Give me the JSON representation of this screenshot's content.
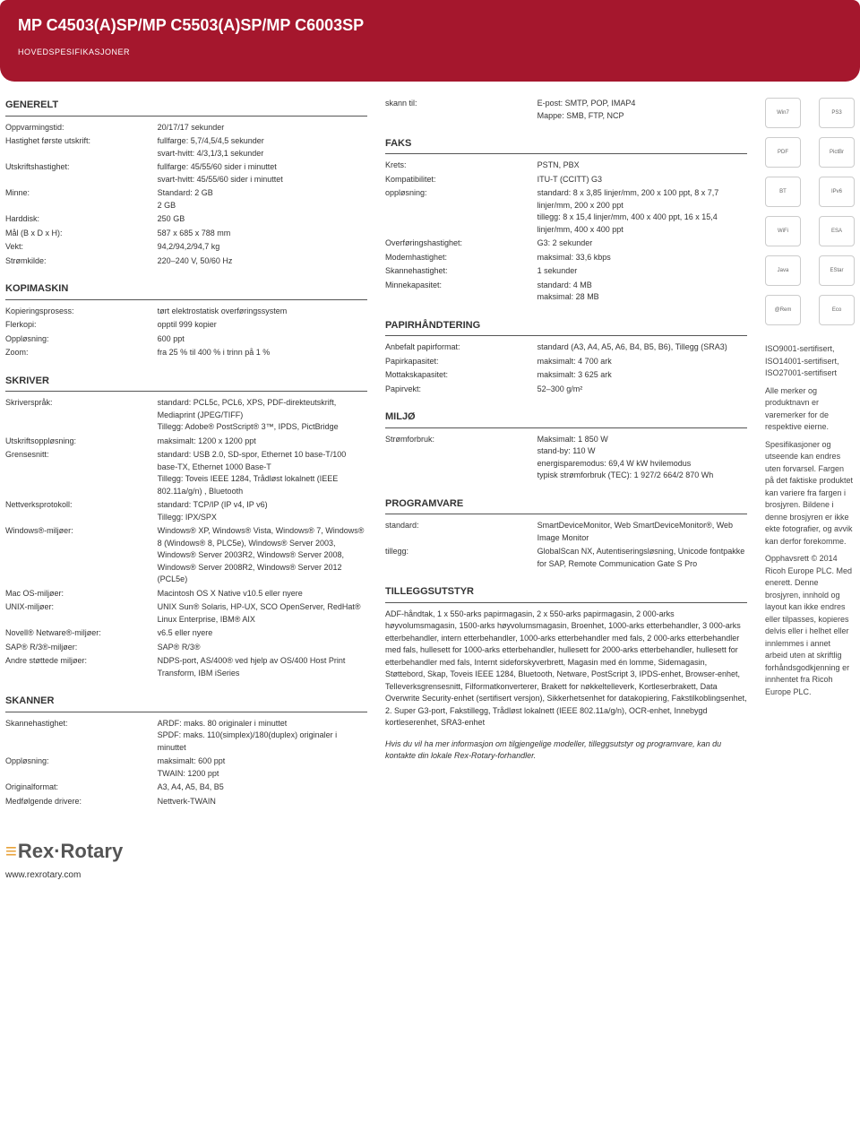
{
  "header": {
    "title": "MP C4503(A)SP/MP C5503(A)SP/MP C6003SP",
    "subtitle": "HOVEDSPESIFIKASJONER"
  },
  "col1": {
    "generelt": {
      "title": "GENERELT",
      "rows": [
        {
          "k": "Oppvarmingstid:",
          "v": "20/17/17 sekunder"
        },
        {
          "k": "Hastighet første utskrift:",
          "v": "fullfarge: 5,7/4,5/4,5 sekunder\nsvart-hvitt: 4/3,1/3,1 sekunder"
        },
        {
          "k": "Utskriftshastighet:",
          "v": "fullfarge: 45/55/60 sider i minuttet\nsvart-hvitt: 45/55/60 sider i minuttet"
        },
        {
          "k": "Minne:",
          "v": "Standard: 2 GB\n2 GB"
        },
        {
          "k": "Harddisk:",
          "v": "250 GB"
        },
        {
          "k": "Mål (B x D x H):",
          "v": "587 x 685 x 788 mm"
        },
        {
          "k": "Vekt:",
          "v": "94,2/94,2/94,7 kg"
        },
        {
          "k": "Strømkilde:",
          "v": "220–240 V, 50/60 Hz"
        }
      ]
    },
    "kopimaskin": {
      "title": "KOPIMASKIN",
      "rows": [
        {
          "k": "Kopieringsprosess:",
          "v": "tørt elektrostatisk overføringssystem"
        },
        {
          "k": "Flerkopi:",
          "v": "opptil 999 kopier"
        },
        {
          "k": "Oppløsning:",
          "v": "600 ppt"
        },
        {
          "k": "Zoom:",
          "v": "fra 25 % til 400 % i trinn på 1 %"
        }
      ]
    },
    "skriver": {
      "title": "SKRIVER",
      "rows": [
        {
          "k": "Skriverspråk:",
          "v": "standard: PCL5c, PCL6, XPS, PDF-direkteutskrift, Mediaprint (JPEG/TIFF)\nTillegg: Adobe® PostScript® 3™, IPDS, PictBridge"
        },
        {
          "k": "Utskriftsoppløsning:",
          "v": "maksimalt: 1200 x 1200 ppt"
        },
        {
          "k": "Grensesnitt:",
          "v": "standard: USB 2.0, SD-spor, Ethernet 10 base-T/100 base-TX, Ethernet 1000 Base-T\nTillegg: Toveis IEEE 1284, Trådløst lokalnett (IEEE 802.11a/g/n) , Bluetooth"
        },
        {
          "k": "Nettverksprotokoll:",
          "v": "standard: TCP/IP (IP v4, IP v6)\nTillegg: IPX/SPX"
        },
        {
          "k": "Windows®-miljøer:",
          "v": "Windows® XP, Windows® Vista, Windows® 7, Windows® 8 (Windows® 8, PLC5e), Windows® Server 2003, Windows® Server 2003R2, Windows® Server 2008, Windows® Server 2008R2, Windows® Server 2012 (PCL5e)"
        },
        {
          "k": "Mac OS-miljøer:",
          "v": "Macintosh OS X Native v10.5 eller nyere"
        },
        {
          "k": "UNIX-miljøer:",
          "v": "UNIX Sun® Solaris, HP-UX, SCO OpenServer, RedHat® Linux Enterprise, IBM® AIX"
        },
        {
          "k": "Novell® Netware®-miljøer:",
          "v": "v6.5 eller nyere"
        },
        {
          "k": "SAP® R/3®-miljøer:",
          "v": "SAP® R/3®"
        },
        {
          "k": "Andre støttede miljøer:",
          "v": "NDPS-port, AS/400® ved hjelp av OS/400 Host Print Transform, IBM iSeries"
        }
      ]
    },
    "skanner": {
      "title": "SKANNER",
      "rows": [
        {
          "k": "Skannehastighet:",
          "v": "ARDF: maks. 80 originaler i minuttet\nSPDF: maks. 110(simplex)/180(duplex) originaler i minuttet"
        },
        {
          "k": "Oppløsning:",
          "v": "maksimalt: 600 ppt\nTWAIN: 1200 ppt"
        },
        {
          "k": "Originalformat:",
          "v": "A3, A4, A5, B4, B5"
        },
        {
          "k": "Medfølgende drivere:",
          "v": "Nettverk-TWAIN"
        }
      ]
    }
  },
  "col2": {
    "skanntil": {
      "k": "skann til:",
      "v": "E-post: SMTP, POP, IMAP4\nMappe: SMB, FTP, NCP"
    },
    "faks": {
      "title": "FAKS",
      "rows": [
        {
          "k": "Krets:",
          "v": "PSTN, PBX"
        },
        {
          "k": "Kompatibilitet:",
          "v": "ITU-T (CCITT) G3"
        },
        {
          "k": "oppløsning:",
          "v": "standard: 8 x 3,85 linjer/mm, 200 x 100 ppt, 8 x 7,7 linjer/mm, 200 x 200 ppt\ntillegg: 8 x 15,4 linjer/mm, 400 x 400 ppt, 16 x 15,4 linjer/mm, 400 x 400 ppt"
        },
        {
          "k": "Overføringshastighet:",
          "v": "G3: 2 sekunder"
        },
        {
          "k": "Modemhastighet:",
          "v": "maksimal: 33,6 kbps"
        },
        {
          "k": "Skannehastighet:",
          "v": "1 sekunder"
        },
        {
          "k": "Minnekapasitet:",
          "v": "standard: 4 MB\nmaksimal: 28 MB"
        }
      ]
    },
    "papir": {
      "title": "PAPIRHÅNDTERING",
      "rows": [
        {
          "k": "Anbefalt papirformat:",
          "v": "standard (A3, A4, A5, A6, B4, B5, B6), Tillegg (SRA3)"
        },
        {
          "k": "Papirkapasitet:",
          "v": "maksimalt: 4 700 ark"
        },
        {
          "k": "Mottakskapasitet:",
          "v": "maksimalt: 3 625 ark"
        },
        {
          "k": "Papirvekt:",
          "v": "52–300 g/m²"
        }
      ]
    },
    "miljo": {
      "title": "MILJØ",
      "rows": [
        {
          "k": "Strømforbruk:",
          "v": "Maksimalt: 1 850 W\nstand-by: 110 W\nenergisparemodus: 69,4 W kW hvilemodus\ntypisk strømforbruk (TEC): 1 927/2 664/2 870 Wh"
        }
      ]
    },
    "programvare": {
      "title": "PROGRAMVARE",
      "rows": [
        {
          "k": "standard:",
          "v": "SmartDeviceMonitor, Web SmartDeviceMonitor®, Web Image Monitor"
        },
        {
          "k": "tillegg:",
          "v": "GlobalScan NX, Autentiseringsløsning, Unicode fontpakke for SAP, Remote Communication Gate S Pro"
        }
      ]
    },
    "tillegg": {
      "title": "TILLEGGSUTSTYR",
      "text": "ADF-håndtak, 1 x 550-arks papirmagasin, 2 x 550-arks papirmagasin, 2 000-arks høyvolumsmagasin, 1500-arks høyvolumsmagasin, Broenhet, 1000-arks etterbehandler, 3 000-arks etterbehandler, intern etterbehandler, 1000-arks etterbehandler med fals, 2 000-arks etterbehandler med fals, hullesett for 1000-arks etterbehandler, hullesett for 2000-arks etterbehandler, hullesett for etterbehandler med fals, Internt sideforskyverbrett, Magasin med én lomme, Sidemagasin, Støttebord, Skap, Toveis IEEE 1284, Bluetooth, Netware, PostScript 3, IPDS-enhet, Browser-enhet, Telleverksgrensesnitt, Filformatkonverterer, Brakett for nøkkeltelleverk, Kortleserbrakett, Data Overwrite Security-enhet (sertifisert versjon), Sikkerhetsenhet for datakopiering, Fakstilkoblingsenhet, 2. Super G3-port, Fakstillegg, Trådløst lokalnett (IEEE 802.11a/g/n), OCR-enhet, Innebygd kortleserenhet, SRA3-enhet",
      "italic": "Hvis du vil ha mer informasjon om tilgjengelige modeller, tilleggsutstyr og programvare, kan du kontakte din lokale Rex-Rotary-forhandler."
    }
  },
  "col3": {
    "badges": [
      "Win7",
      "PS3",
      "PDF",
      "PictBr",
      "BT",
      "IPv6",
      "WiFi",
      "ESA",
      "Java",
      "EStar",
      "@Rem",
      "Eco"
    ],
    "legal": {
      "certs": "ISO9001-sertifisert, ISO14001-sertifisert, ISO27001-sertifisert",
      "p1": "Alle merker og produktnavn er varemerker for de respektive eierne.",
      "p2": "Spesifikasjoner og utseende kan endres uten forvarsel. Fargen på det faktiske produktet kan variere fra fargen i brosjyren. Bildene i denne brosjyren er ikke ekte fotografier, og avvik kan derfor forekomme.",
      "p3": "Opphavsrett © 2014 Ricoh Europe PLC. Med enerett. Denne brosjyren, innhold og layout kan ikke endres eller tilpasses, kopieres delvis eller i helhet eller innlemmes i annet arbeid uten at skriftlig forhåndsgodkjenning er innhentet fra Ricoh Europe PLC."
    }
  },
  "footer": {
    "logo": "Rex·Rotary",
    "url": "www.rexrotary.com"
  }
}
